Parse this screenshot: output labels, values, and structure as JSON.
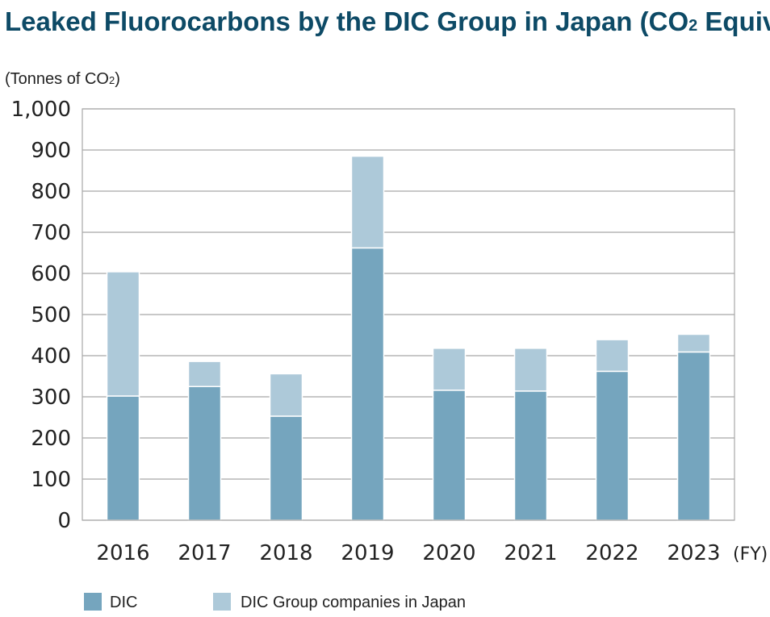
{
  "chart_data": {
    "type": "bar",
    "stacked": true,
    "title": "Leaked Fluorocarbons by the DIC Group in Japan (CO",
    "title_subscript": "2",
    "title_suffix": " Equivalent)",
    "ylabel": "(Tonnes of CO",
    "ylabel_subscript": "2",
    "ylabel_suffix": ")",
    "xunit": "(FY)",
    "ylim": [
      0,
      1000
    ],
    "yticks": [
      0,
      100,
      200,
      300,
      400,
      500,
      600,
      700,
      800,
      900,
      1000
    ],
    "ytick_labels": [
      "0",
      "100",
      "200",
      "300",
      "400",
      "500",
      "600",
      "700",
      "800",
      "900",
      "1,000"
    ],
    "grid": true,
    "legend_position": "bottom-left",
    "categories": [
      "2016",
      "2017",
      "2018",
      "2019",
      "2020",
      "2021",
      "2022",
      "2023"
    ],
    "series": [
      {
        "name": "DIC",
        "color": "#75a5be",
        "values": [
          302,
          325,
          253,
          662,
          316,
          314,
          362,
          409
        ]
      },
      {
        "name": "DIC Group companies in Japan",
        "color": "#adc9d9",
        "values": [
          302,
          61,
          103,
          223,
          102,
          104,
          77,
          43
        ]
      }
    ]
  }
}
